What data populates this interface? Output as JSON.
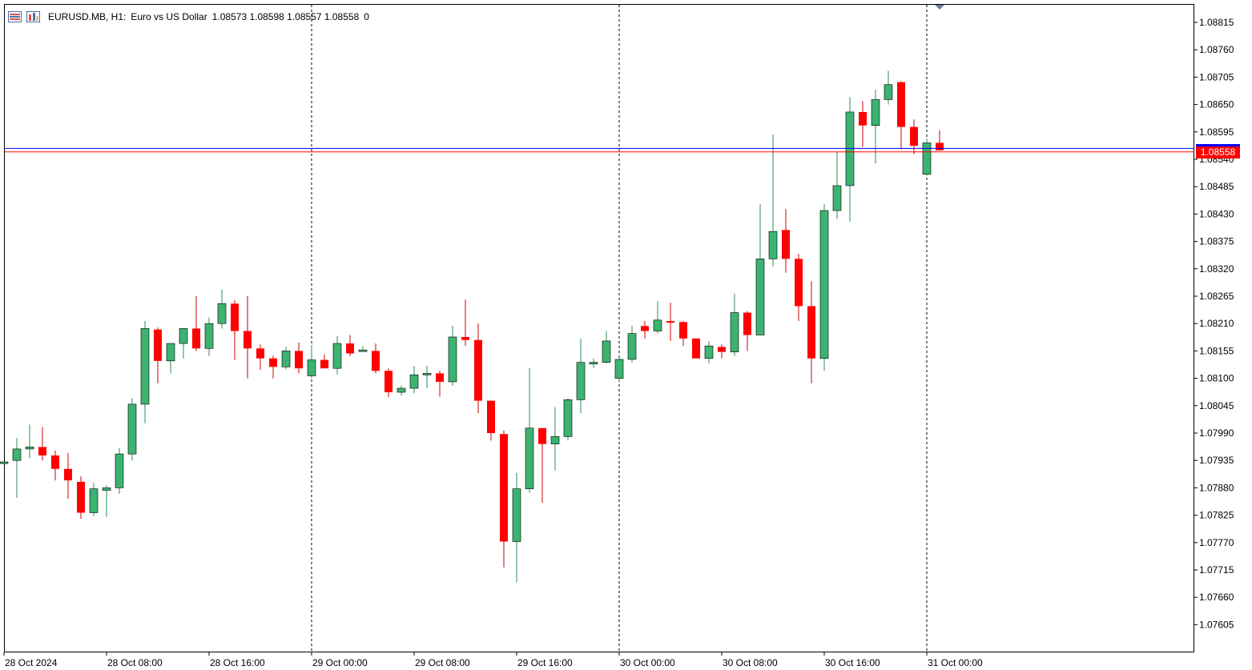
{
  "header": {
    "symbol": "EURUSD.MB, H1:",
    "description": "Euro vs US Dollar",
    "ohlc": "1.08573 1.08598 1.08557 1.08558",
    "volume": "0"
  },
  "price_tag": "1.08558",
  "colors": {
    "bull": "#3cb371",
    "bear": "#ff0000",
    "bid_line": "#ff0000",
    "ask_line": "#0000ff",
    "grid": "#000000"
  },
  "icons": [
    "list-icon",
    "chart-bars-icon"
  ],
  "chart_data": {
    "type": "candlestick",
    "timeframe": "H1",
    "y_ticks": [
      "1.08815",
      "1.08760",
      "1.08705",
      "1.08650",
      "1.08595",
      "1.08540",
      "1.08485",
      "1.08430",
      "1.08375",
      "1.08320",
      "1.08265",
      "1.08210",
      "1.08155",
      "1.08100",
      "1.08045",
      "1.07990",
      "1.07935",
      "1.07880",
      "1.07825",
      "1.07770",
      "1.07715",
      "1.07660",
      "1.07605"
    ],
    "x_labels": [
      "28 Oct 2024",
      "28 Oct 08:00",
      "28 Oct 16:00",
      "29 Oct 00:00",
      "29 Oct 08:00",
      "29 Oct 16:00",
      "30 Oct 00:00",
      "30 Oct 08:00",
      "30 Oct 16:00",
      "31 Oct 00:00"
    ],
    "day_separators": [
      "29 Oct 00:00",
      "30 Oct 00:00",
      "31 Oct 00:00"
    ],
    "bid": 1.08558,
    "ask": 1.08562,
    "candles": [
      [
        1.07932,
        1.07932,
        1.07932,
        1.07932
      ],
      [
        1.07935,
        1.0798,
        1.0786,
        1.07958
      ],
      [
        1.07958,
        1.08007,
        1.0794,
        1.07962
      ],
      [
        1.07962,
        1.08002,
        1.07935,
        1.07945
      ],
      [
        1.07945,
        1.07955,
        1.07895,
        1.07918
      ],
      [
        1.07918,
        1.0795,
        1.07858,
        1.07895
      ],
      [
        1.07892,
        1.07903,
        1.07818,
        1.0783
      ],
      [
        1.0783,
        1.0789,
        1.07823,
        1.07878
      ],
      [
        1.07875,
        1.07885,
        1.07822,
        1.0788
      ],
      [
        1.0788,
        1.0796,
        1.07868,
        1.07948
      ],
      [
        1.07948,
        1.0806,
        1.07935,
        1.08048
      ],
      [
        1.08048,
        1.08215,
        1.0801,
        1.082
      ],
      [
        1.08198,
        1.08202,
        1.0809,
        1.08135
      ],
      [
        1.08135,
        1.0817,
        1.0811,
        1.0817
      ],
      [
        1.0817,
        1.082,
        1.0814,
        1.082
      ],
      [
        1.082,
        1.08265,
        1.08155,
        1.0816
      ],
      [
        1.0816,
        1.08222,
        1.08145,
        1.0821
      ],
      [
        1.0821,
        1.08278,
        1.082,
        1.0825
      ],
      [
        1.0825,
        1.08257,
        1.08137,
        1.08195
      ],
      [
        1.08195,
        1.08265,
        1.081,
        1.0816
      ],
      [
        1.0816,
        1.08168,
        1.08117,
        1.0814
      ],
      [
        1.0814,
        1.08145,
        1.081,
        1.08123
      ],
      [
        1.08123,
        1.08163,
        1.08118,
        1.08155
      ],
      [
        1.08155,
        1.08172,
        1.0811,
        1.0812
      ],
      [
        1.08105,
        1.08167,
        1.081,
        1.08137
      ],
      [
        1.08137,
        1.08148,
        1.0812,
        1.0812
      ],
      [
        1.0812,
        1.08185,
        1.08108,
        1.0817
      ],
      [
        1.0817,
        1.08187,
        1.08145,
        1.0815
      ],
      [
        1.08157,
        1.08165,
        1.08158,
        1.08157
      ],
      [
        1.08155,
        1.0817,
        1.0811,
        1.08115
      ],
      [
        1.08115,
        1.0812,
        1.08062,
        1.08072
      ],
      [
        1.08072,
        1.08085,
        1.08065,
        1.0808
      ],
      [
        1.0808,
        1.08125,
        1.0807,
        1.08107
      ],
      [
        1.08107,
        1.08125,
        1.0808,
        1.0811
      ],
      [
        1.0811,
        1.08115,
        1.08063,
        1.08093
      ],
      [
        1.08093,
        1.08205,
        1.08085,
        1.08183
      ],
      [
        1.08183,
        1.08258,
        1.08165,
        1.08177
      ],
      [
        1.08177,
        1.0821,
        1.0803,
        1.08055
      ],
      [
        1.08055,
        1.08055,
        1.07975,
        1.0799
      ],
      [
        1.07988,
        1.07995,
        1.0772,
        1.07772
      ],
      [
        1.07772,
        1.0791,
        1.0769,
        1.07878
      ],
      [
        1.07878,
        1.0812,
        1.0787,
        1.08
      ],
      [
        1.08,
        1.08,
        1.0785,
        1.07968
      ],
      [
        1.07968,
        1.08042,
        1.07915,
        1.07983
      ],
      [
        1.07983,
        1.0806,
        1.07975,
        1.08057
      ],
      [
        1.08057,
        1.0818,
        1.0803,
        1.08132
      ],
      [
        1.08132,
        1.0814,
        1.0812,
        1.08132
      ],
      [
        1.08132,
        1.08195,
        1.0813,
        1.08175
      ],
      [
        1.081,
        1.08142,
        1.08095,
        1.08138
      ],
      [
        1.08138,
        1.08205,
        1.08132,
        1.0819
      ],
      [
        1.08205,
        1.08215,
        1.0818,
        1.08195
      ],
      [
        1.08195,
        1.08255,
        1.0819,
        1.08217
      ],
      [
        1.08215,
        1.08252,
        1.08175,
        1.08213
      ],
      [
        1.08213,
        1.08215,
        1.08165,
        1.0818
      ],
      [
        1.0818,
        1.0818,
        1.0814,
        1.0814
      ],
      [
        1.0814,
        1.08175,
        1.0813,
        1.08165
      ],
      [
        1.08163,
        1.08168,
        1.0814,
        1.08153
      ],
      [
        1.08153,
        1.0827,
        1.08145,
        1.08232
      ],
      [
        1.08232,
        1.08235,
        1.08155,
        1.08187
      ],
      [
        1.08187,
        1.0845,
        1.08187,
        1.0834
      ],
      [
        1.0834,
        1.0859,
        1.08325,
        1.08395
      ],
      [
        1.08398,
        1.0844,
        1.08312,
        1.0834
      ],
      [
        1.0834,
        1.0835,
        1.08215,
        1.08245
      ],
      [
        1.08245,
        1.08295,
        1.0809,
        1.0814
      ],
      [
        1.0814,
        1.0845,
        1.08115,
        1.08437
      ],
      [
        1.08437,
        1.08555,
        1.0842,
        1.08487
      ],
      [
        1.08487,
        1.08665,
        1.08415,
        1.08635
      ],
      [
        1.08635,
        1.08657,
        1.08565,
        1.08608
      ],
      [
        1.08608,
        1.0868,
        1.08532,
        1.0866
      ],
      [
        1.0866,
        1.08718,
        1.0865,
        1.0869
      ],
      [
        1.08695,
        1.08697,
        1.0856,
        1.08605
      ],
      [
        1.08605,
        1.0862,
        1.0855,
        1.08567
      ],
      [
        1.0851,
        1.08582,
        1.08507,
        1.08573
      ],
      [
        1.08573,
        1.08598,
        1.08557,
        1.08558
      ]
    ]
  }
}
